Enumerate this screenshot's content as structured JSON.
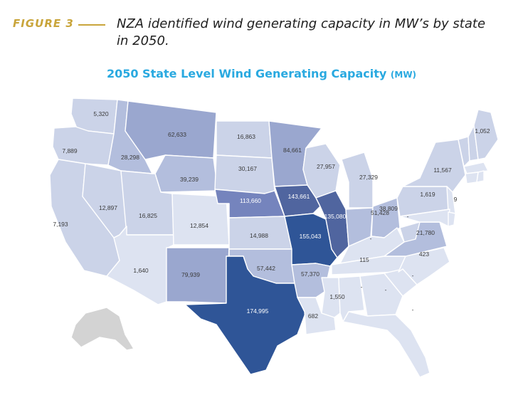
{
  "figure": {
    "label": "FIGURE 3",
    "caption": "NZA identified wind generating capacity in MW’s by state in 2050."
  },
  "map_title": {
    "text": "2050 State Level Wind Generating Capacity",
    "unit": "(MW)"
  },
  "colors": {
    "title": "#29a9e0",
    "figure_label": "#c9a53b",
    "tier_0": "#dde3f1",
    "tier_1": "#cbd3e8",
    "tier_2": "#b3bedd",
    "tier_3": "#9aa7cf",
    "tier_4": "#7584bd",
    "tier_5": "#50659f",
    "tier_6": "#2f5597",
    "nodata": "#d3d3d3",
    "border": "#ffffff"
  },
  "labels": {
    "WA": "5,320",
    "OR": "7,889",
    "ID": "28,298",
    "MT": "62,633",
    "WY": "39,239",
    "ND": "16,863",
    "SD": "30,167",
    "MN": "84,661",
    "WI": "27,957",
    "MI": "27,329",
    "NV": "12,897",
    "UT": "16,825",
    "CO": "12,854",
    "CA": "7,193",
    "AZ": "1,640",
    "NM": "79,939",
    "NE": "113,660",
    "KS": "14,988",
    "OK": "57,442",
    "TX": "174,995",
    "IA": "143,661",
    "MO": "155,043",
    "AR": "57,370",
    "LA": "682",
    "IL": "135,080",
    "IN": "51,428",
    "OH": "38,809",
    "KY": "115",
    "TN": "-",
    "MS": "1,550",
    "AL": "-",
    "GA": "-",
    "FL": "-",
    "SC": "-",
    "NC": "423",
    "VA": "21,780",
    "WV": "-",
    "PA": "1,619",
    "NY": "11,567",
    "ME": "1,052",
    "NJ": "9"
  }
}
